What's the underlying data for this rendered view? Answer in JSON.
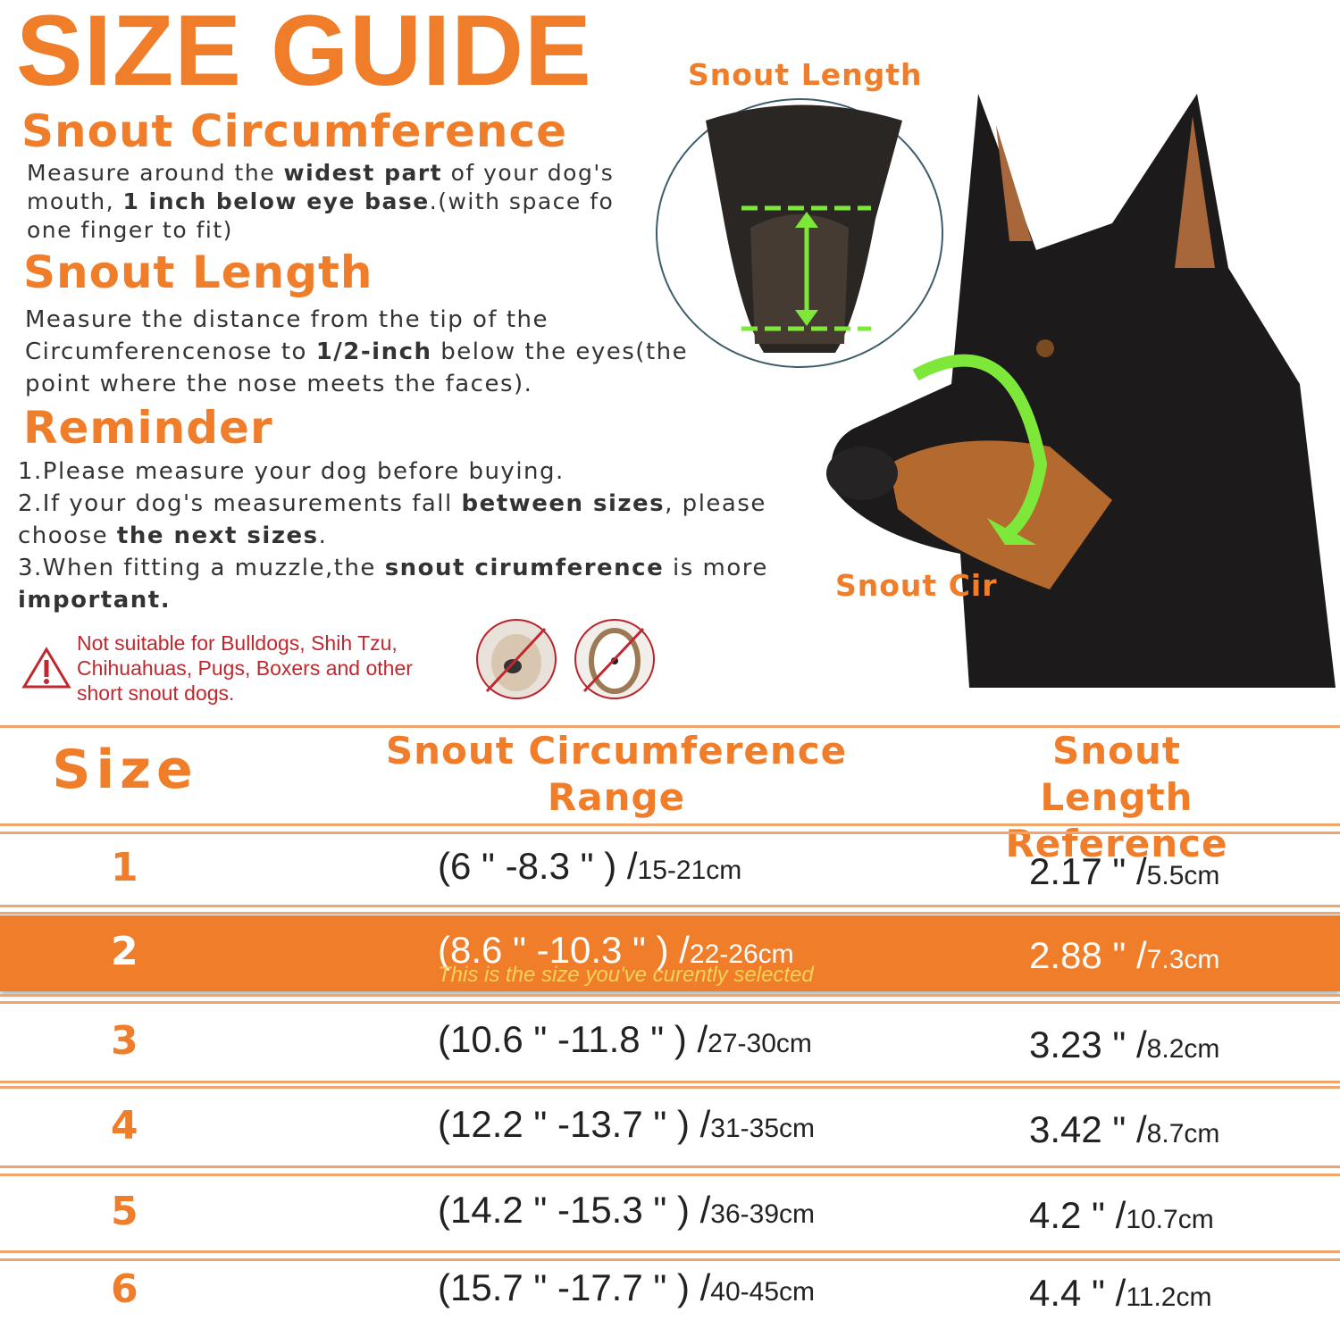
{
  "title": "SIZE GUIDE",
  "circ": {
    "heading": "Snout  Circumference",
    "t1": "Measure around the ",
    "b1": "widest part",
    "t2": " of your dog's mouth, ",
    "b2": "1 inch below eye base",
    ".t3": "",
    "t3": ".(with space fo one finger to fit)"
  },
  "len": {
    "heading": "Snout  Length",
    "t1": "Measure the distance from the tip of the Circumferencenose to ",
    "b1": "1/2-inch",
    "t2": " below the eyes(the point where the nose meets the faces)."
  },
  "reminder": {
    "heading": "Reminder",
    "r1": "1.Please measure your dog before buying.",
    "r2a": "2.If your dog's measurements fall ",
    "r2b": "between sizes",
    "r2c": ", please choose ",
    "r2d": "the next sizes",
    "r2e": ".",
    "r3a": "3.When fitting a muzzle,the ",
    "r3b": "snout cirumference",
    "r3c": " is more ",
    "r3d": "important."
  },
  "warning": "Not suitable for Bulldogs, Shih Tzu, Chihuahuas, Pugs, Boxers and other short snout dogs.",
  "photo_labels": {
    "length": "Snout  Length",
    "cir": "Snout  Cir"
  },
  "colors": {
    "accent": "#ef7d2a",
    "selected_row": "#ef7d2a",
    "measure_green": "#7ee83a",
    "warning": "#c0282f"
  },
  "table": {
    "headers": {
      "size": "Size",
      "circ": "Snout Circumference Range",
      "length": "Snout Length Reference"
    },
    "selected_note": "This is the size you've curently selected",
    "rows": [
      {
        "size": "1",
        "circ_in": "(6 \" -8.3 \" )  /",
        "circ_cm": "15-21cm",
        "len_in": "2.17 \" /",
        "len_cm": "5.5cm"
      },
      {
        "size": "2",
        "circ_in": "(8.6 \" -10.3 \" )  /",
        "circ_cm": "22-26cm",
        "len_in": "2.88 \" /",
        "len_cm": "7.3cm"
      },
      {
        "size": "3",
        "circ_in": "(10.6 \" -11.8 \" )  /",
        "circ_cm": "27-30cm",
        "len_in": "3.23 \" /",
        "len_cm": "8.2cm"
      },
      {
        "size": "4",
        "circ_in": "(12.2 \" -13.7 \" )  /",
        "circ_cm": "31-35cm",
        "len_in": "3.42 \" /",
        "len_cm": "8.7cm"
      },
      {
        "size": "5",
        "circ_in": "(14.2 \" -15.3 \" )  /",
        "circ_cm": "36-39cm",
        "len_in": "4.2 \" /",
        "len_cm": "10.7cm"
      },
      {
        "size": "6",
        "circ_in": "(15.7 \" -17.7 \" )  /",
        "circ_cm": "40-45cm",
        "len_in": "4.4 \" /",
        "len_cm": "11.2cm"
      }
    ],
    "selected_index": 1
  }
}
